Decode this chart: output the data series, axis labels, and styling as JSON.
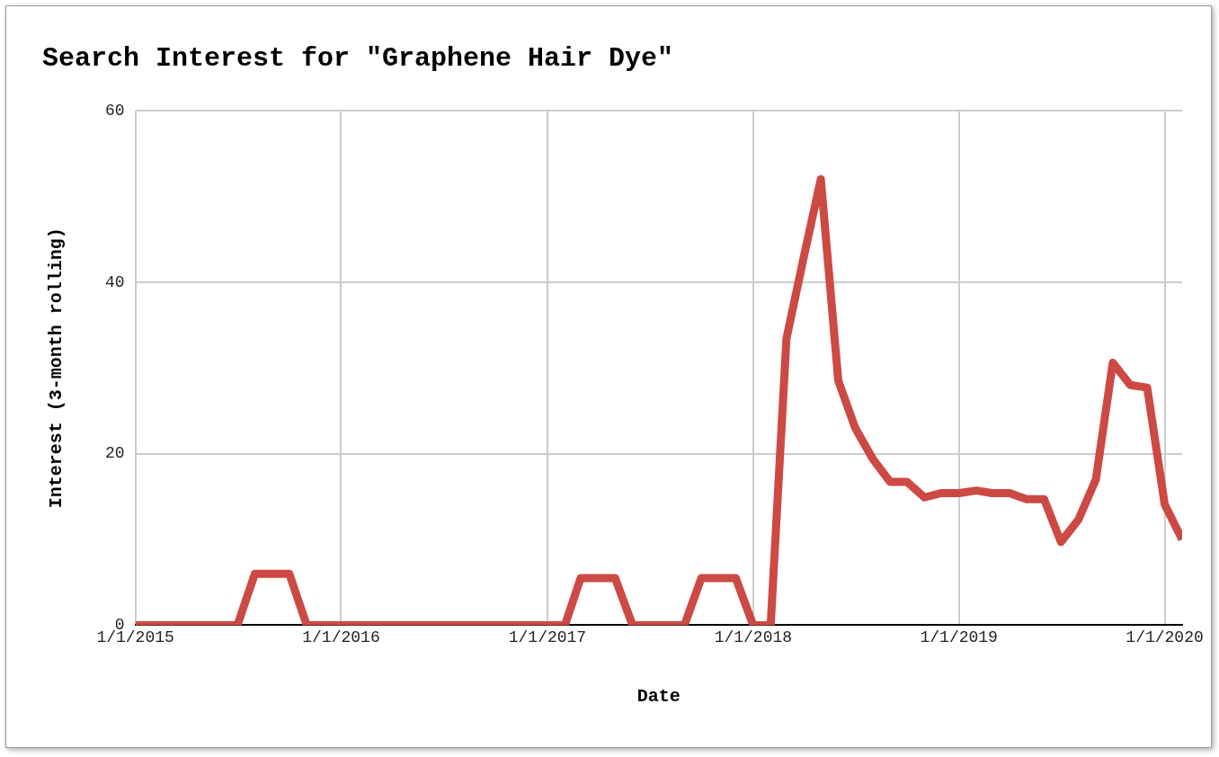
{
  "chart_data": {
    "type": "line",
    "title": "Search Interest for \"Graphene Hair Dye\"",
    "xlabel": "Date",
    "ylabel": "Interest (3-month rolling)",
    "x": [
      "2015-01",
      "2015-02",
      "2015-03",
      "2015-04",
      "2015-05",
      "2015-06",
      "2015-07",
      "2015-08",
      "2015-09",
      "2015-10",
      "2015-11",
      "2015-12",
      "2016-01",
      "2016-02",
      "2016-03",
      "2016-04",
      "2016-05",
      "2016-06",
      "2016-07",
      "2016-08",
      "2016-09",
      "2016-10",
      "2016-11",
      "2016-12",
      "2017-01",
      "2017-02",
      "2017-03",
      "2017-04",
      "2017-05",
      "2017-06",
      "2017-07",
      "2017-08",
      "2017-09",
      "2017-10",
      "2017-11",
      "2017-12",
      "2018-01",
      "2018-02",
      "2018-03",
      "2018-04",
      "2018-05",
      "2018-06",
      "2018-07",
      "2018-08",
      "2018-09",
      "2018-10",
      "2018-11",
      "2018-12",
      "2019-01",
      "2019-02",
      "2019-03",
      "2019-04",
      "2019-05",
      "2019-06",
      "2019-07",
      "2019-08",
      "2019-09",
      "2019-10",
      "2019-11",
      "2019-12",
      "2020-01",
      "2020-02"
    ],
    "series": [
      {
        "color": "#cc4a43",
        "values": [
          0,
          0,
          0,
          0,
          0,
          0,
          0,
          6,
          6,
          6,
          0,
          0,
          0,
          0,
          0,
          0,
          0,
          0,
          0,
          0,
          0,
          0,
          0,
          0,
          0,
          0,
          5.5,
          5.5,
          5.5,
          0,
          0,
          0,
          0,
          5.5,
          5.5,
          5.5,
          0,
          0,
          33.4,
          43,
          52,
          28.5,
          23,
          19.4,
          16.7,
          16.7,
          14.9,
          15.4,
          15.4,
          15.7,
          15.4,
          15.4,
          14.7,
          14.7,
          9.7,
          12.3,
          17,
          30.6,
          28,
          27.7,
          14.1,
          10
        ]
      }
    ],
    "xlim": [
      "2015-01-01",
      "2020-02-01"
    ],
    "xticks": [
      {
        "value": "2015-01-01",
        "label": "1/1/2015"
      },
      {
        "value": "2016-01-01",
        "label": "1/1/2016"
      },
      {
        "value": "2017-01-01",
        "label": "1/1/2017"
      },
      {
        "value": "2018-01-01",
        "label": "1/1/2018"
      },
      {
        "value": "2019-01-01",
        "label": "1/1/2019"
      },
      {
        "value": "2020-01-01",
        "label": "1/1/2020"
      }
    ],
    "ylim": [
      0,
      60
    ],
    "yticks": [
      0,
      20,
      40,
      60
    ],
    "grid": true,
    "legend": false,
    "marker": "none",
    "line_style": "solid"
  }
}
